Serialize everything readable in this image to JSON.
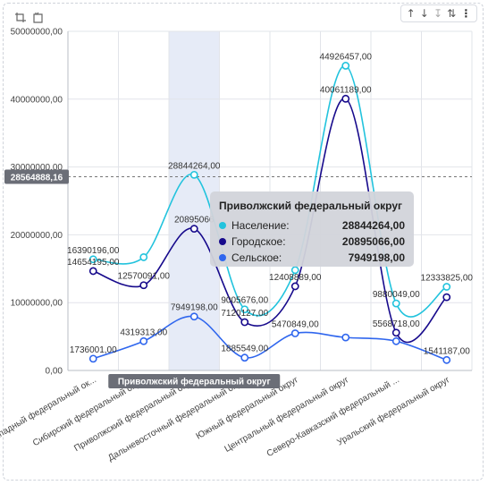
{
  "colors": {
    "population": "#22c3dd",
    "urban": "#170a8c",
    "rural": "#2f66ee",
    "grid": "#e2e4ea",
    "highlight": "#e6ebf7"
  },
  "toolbar": {
    "sort_asc_icon": "↑",
    "sort_desc_icon": "↓",
    "sort_disabled_icon": "↧",
    "sort_az_icon": "⇅",
    "more_icon": "⋮"
  },
  "crosshair": {
    "value_label": "28564888,16"
  },
  "category_tag": {
    "label": "Приволжский федеральный округ"
  },
  "tooltip": {
    "title": "Приволжский федеральный округ",
    "rows": [
      {
        "name": "Население:",
        "value": "28844264,00",
        "color": "#22c3dd"
      },
      {
        "name": "Городское:",
        "value": "20895066,00",
        "color": "#170a8c"
      },
      {
        "name": "Сельское:",
        "value": "7949198,00",
        "color": "#2f66ee"
      }
    ]
  },
  "chart_data": {
    "type": "line",
    "categories": [
      "Северо-Западный федеральный ок...",
      "Сибирский федеральный округ",
      "Приволжский федеральный округ",
      "Дальневосточный федеральный округ",
      "Южный федеральный округ",
      "Центральный федеральный округ",
      "Северо-Кавказский федеральный ...",
      "Уральский федеральный округ"
    ],
    "ylim": [
      0,
      50000000
    ],
    "y_ticks": [
      "0,00",
      "10000000,00",
      "20000000,00",
      "30000000,00",
      "40000000,00",
      "50000000,00"
    ],
    "y_tick_values": [
      0,
      10000000,
      20000000,
      30000000,
      40000000,
      50000000
    ],
    "crosshair_value": 28564888.16,
    "highlighted_category": "Приволжский федеральный округ",
    "grid": true,
    "series": [
      {
        "name": "Население",
        "color": "#22c3dd",
        "values": [
          16390196,
          16700000,
          28844264,
          9005676,
          14800000,
          44926457,
          9880049,
          12333825
        ],
        "labels": [
          "16390196,00",
          "",
          "28844264,00",
          "9005676,00",
          "",
          "44926457,00",
          "9880049,00",
          "12333825,00"
        ]
      },
      {
        "name": "Городское",
        "color": "#170a8c",
        "values": [
          14654195,
          12570091,
          20895066,
          7120127,
          12408889,
          40061189,
          5568718,
          10800000
        ],
        "labels": [
          "14654195,00",
          "12570091,00",
          "20895066",
          "7120127,00",
          "12408889,00",
          "40061189,00",
          "5568718,00",
          ""
        ]
      },
      {
        "name": "Сельское",
        "color": "#2f66ee",
        "values": [
          1736001,
          4319313,
          7949198,
          1885549,
          5470849,
          4865268,
          4311331,
          1541187
        ],
        "labels": [
          "1736001,00",
          "4319313,00",
          "7949198,00",
          "1885549,00",
          "5470849,00",
          "",
          "",
          "1541187,00"
        ]
      }
    ]
  }
}
